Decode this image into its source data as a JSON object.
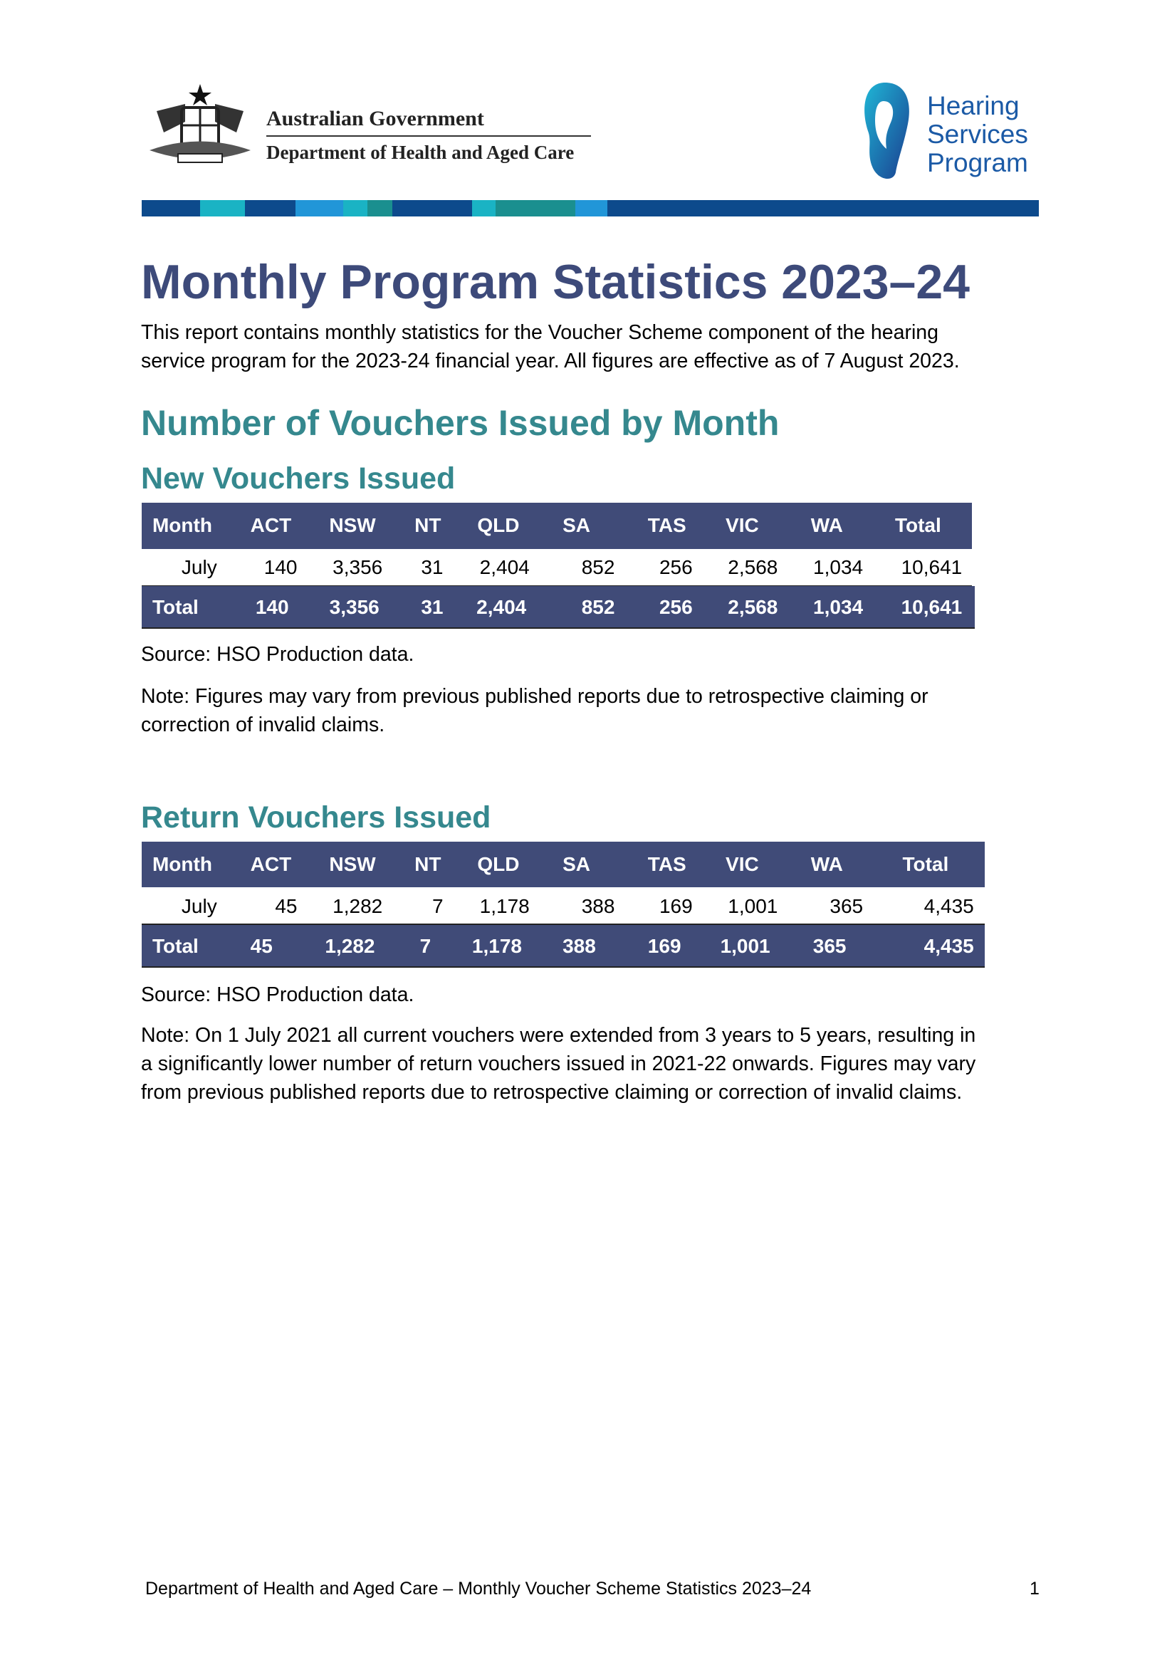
{
  "header": {
    "gov_name": "Australian Government",
    "department": "Department of Health and Aged Care",
    "program_logo": [
      "Hearing",
      "Services",
      "Program"
    ]
  },
  "title": "Monthly Program Statistics 2023–24",
  "intro_lines": [
    "This report contains monthly statistics for the Voucher Scheme component of the hearing",
    "service program for the 2023-24 financial year. All figures are effective as of 7 August 2023."
  ],
  "section_heading": "Number of Vouchers Issued by Month",
  "tables": [
    {
      "heading": "New Vouchers Issued",
      "columns": [
        "Month",
        "ACT",
        "NSW",
        "NT",
        "QLD",
        "SA",
        "TAS",
        "VIC",
        "WA",
        "Total"
      ],
      "rows": [
        [
          "July",
          "140",
          "3,356",
          "31",
          "2,404",
          "852",
          "256",
          "2,568",
          "1,034",
          "10,641"
        ]
      ],
      "total": [
        "Total",
        "140",
        "3,356",
        "31",
        "2,404",
        "852",
        "256",
        "2,568",
        "1,034",
        "10,641"
      ],
      "source": "Source: HSO Production data.",
      "note_lines": [
        "Note: Figures may vary from previous published reports due to retrospective claiming or",
        "correction of invalid claims."
      ]
    },
    {
      "heading": "Return Vouchers Issued",
      "columns": [
        "Month",
        "ACT",
        "NSW",
        "NT",
        "QLD",
        "SA",
        "TAS",
        "VIC",
        "WA",
        "Total"
      ],
      "rows": [
        [
          "July",
          "45",
          "1,282",
          "7",
          "1,178",
          "388",
          "169",
          "1,001",
          "365",
          "4,435"
        ]
      ],
      "total": [
        "Total",
        "45",
        "1,282",
        "7",
        "1,178",
        "388",
        "169",
        "1,001",
        "365",
        "4,435"
      ],
      "source": "Source: HSO Production data.",
      "note_lines": [
        "Note: On 1 July 2021 all current vouchers were extended from 3 years to 5 years, resulting in",
        "a significantly lower number of return vouchers issued in 2021-22 onwards. Figures may vary",
        "from previous published reports due to retrospective claiming or correction of invalid claims."
      ]
    }
  ],
  "footer": {
    "text": "Department of Health and Aged Care – Monthly Voucher Scheme Statistics 2023–24",
    "page": "1"
  }
}
